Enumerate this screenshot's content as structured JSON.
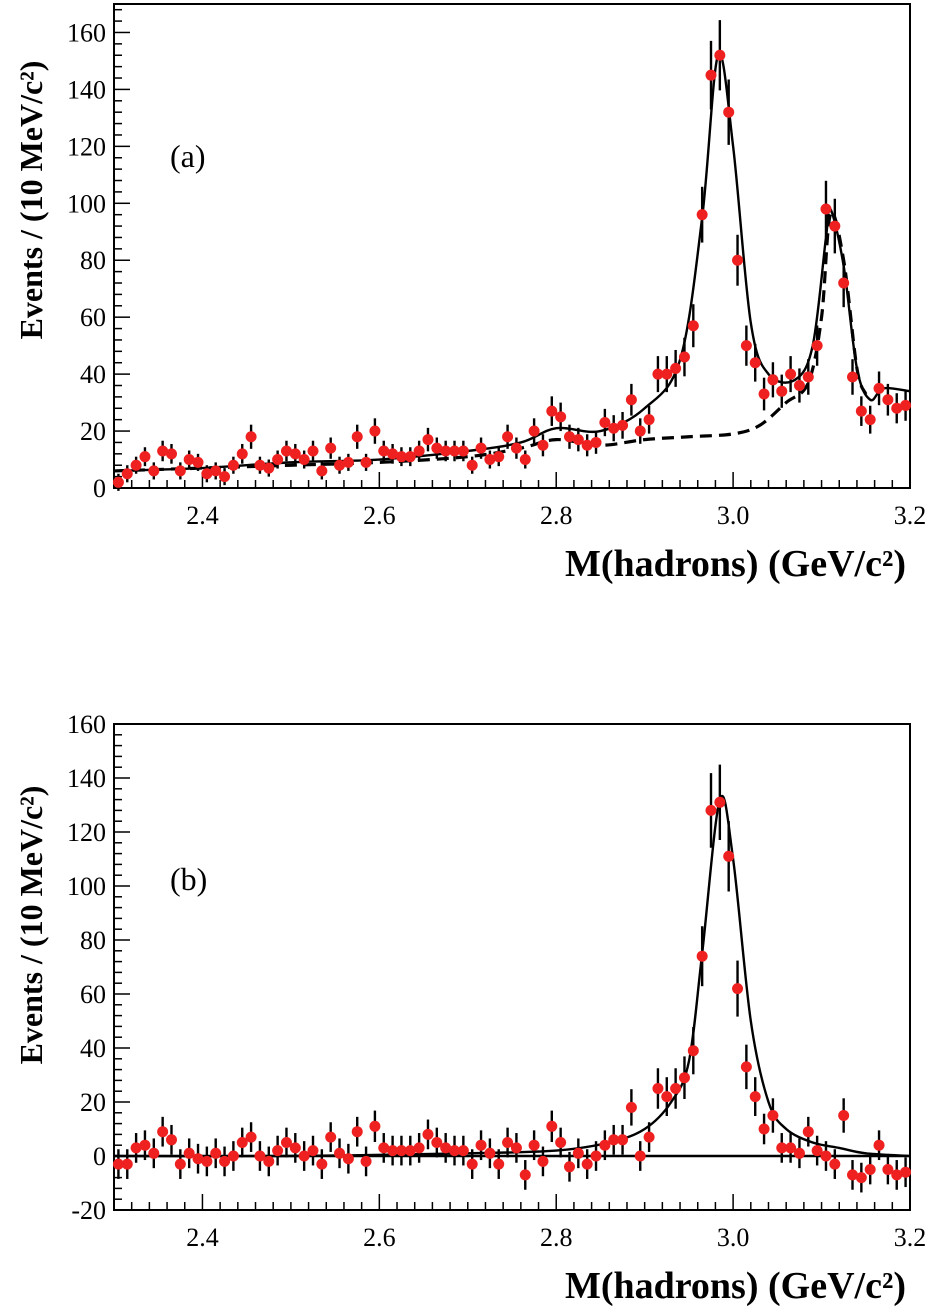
{
  "colors": {
    "marker": "#ee2020",
    "line": "#000000",
    "errorbar": "#000000"
  },
  "chart_data": [
    {
      "type": "scatter",
      "panel_label": "(a)",
      "xlabel": "M(hadrons)  (GeV/c²)",
      "ylabel": "Events / (10 MeV/c²)",
      "xlim": [
        2.3,
        3.2
      ],
      "ylim": [
        0,
        170
      ],
      "xticks": [
        "2.4",
        "2.6",
        "2.8",
        "3.0",
        "3.2"
      ],
      "xtick_values": [
        2.4,
        2.6,
        2.8,
        3.0,
        3.2
      ],
      "yticks": [
        "0",
        "20",
        "40",
        "60",
        "80",
        "100",
        "120",
        "140",
        "160"
      ],
      "ytick_values": [
        0,
        20,
        40,
        60,
        80,
        100,
        120,
        140,
        160
      ],
      "data_points": [
        [
          2.305,
          2
        ],
        [
          2.315,
          5
        ],
        [
          2.325,
          8
        ],
        [
          2.335,
          11
        ],
        [
          2.345,
          6
        ],
        [
          2.355,
          13
        ],
        [
          2.365,
          12
        ],
        [
          2.375,
          6
        ],
        [
          2.385,
          10
        ],
        [
          2.395,
          9
        ],
        [
          2.405,
          5
        ],
        [
          2.415,
          6
        ],
        [
          2.425,
          4
        ],
        [
          2.435,
          8
        ],
        [
          2.445,
          12
        ],
        [
          2.455,
          18
        ],
        [
          2.465,
          8
        ],
        [
          2.475,
          7
        ],
        [
          2.485,
          10
        ],
        [
          2.495,
          13
        ],
        [
          2.505,
          12
        ],
        [
          2.515,
          10
        ],
        [
          2.525,
          13
        ],
        [
          2.535,
          6
        ],
        [
          2.545,
          14
        ],
        [
          2.555,
          8
        ],
        [
          2.565,
          9
        ],
        [
          2.575,
          18
        ],
        [
          2.585,
          9
        ],
        [
          2.595,
          20
        ],
        [
          2.605,
          13
        ],
        [
          2.615,
          12
        ],
        [
          2.625,
          11
        ],
        [
          2.635,
          11
        ],
        [
          2.645,
          13
        ],
        [
          2.655,
          17
        ],
        [
          2.665,
          14
        ],
        [
          2.675,
          13
        ],
        [
          2.685,
          13
        ],
        [
          2.695,
          13
        ],
        [
          2.705,
          8
        ],
        [
          2.715,
          14
        ],
        [
          2.725,
          10
        ],
        [
          2.735,
          11
        ],
        [
          2.745,
          18
        ],
        [
          2.755,
          14
        ],
        [
          2.765,
          10
        ],
        [
          2.775,
          20
        ],
        [
          2.785,
          15
        ],
        [
          2.795,
          27
        ],
        [
          2.805,
          25
        ],
        [
          2.815,
          18
        ],
        [
          2.825,
          17
        ],
        [
          2.835,
          15
        ],
        [
          2.845,
          16
        ],
        [
          2.855,
          23
        ],
        [
          2.865,
          21
        ],
        [
          2.875,
          22
        ],
        [
          2.885,
          31
        ],
        [
          2.895,
          20
        ],
        [
          2.905,
          24
        ],
        [
          2.915,
          40
        ],
        [
          2.925,
          40
        ],
        [
          2.935,
          42
        ],
        [
          2.945,
          46
        ],
        [
          2.955,
          57
        ],
        [
          2.965,
          96
        ],
        [
          2.975,
          145
        ],
        [
          2.985,
          152
        ],
        [
          2.995,
          132
        ],
        [
          3.005,
          80
        ],
        [
          3.015,
          50
        ],
        [
          3.025,
          44
        ],
        [
          3.035,
          33
        ],
        [
          3.045,
          38
        ],
        [
          3.055,
          34
        ],
        [
          3.065,
          40
        ],
        [
          3.075,
          36
        ],
        [
          3.085,
          39
        ],
        [
          3.095,
          50
        ],
        [
          3.105,
          98
        ],
        [
          3.115,
          92
        ],
        [
          3.125,
          72
        ],
        [
          3.135,
          39
        ],
        [
          3.145,
          27
        ],
        [
          3.155,
          24
        ],
        [
          3.165,
          35
        ],
        [
          3.175,
          31
        ],
        [
          3.185,
          28
        ],
        [
          3.195,
          29
        ]
      ],
      "curves": [
        {
          "style": "solid",
          "points": [
            [
              2.3,
              6
            ],
            [
              2.4,
              7
            ],
            [
              2.5,
              9
            ],
            [
              2.6,
              10
            ],
            [
              2.7,
              13
            ],
            [
              2.76,
              16
            ],
            [
              2.8,
              21
            ],
            [
              2.85,
              20
            ],
            [
              2.9,
              28
            ],
            [
              2.94,
              45
            ],
            [
              2.965,
              95
            ],
            [
              2.983,
              152
            ],
            [
              3.0,
              120
            ],
            [
              3.02,
              58
            ],
            [
              3.04,
              40
            ],
            [
              3.07,
              38
            ],
            [
              3.09,
              50
            ],
            [
              3.105,
              88
            ],
            [
              3.11,
              98
            ],
            [
              3.125,
              78
            ],
            [
              3.14,
              42
            ],
            [
              3.155,
              31
            ],
            [
              3.17,
              35
            ],
            [
              3.2,
              34
            ]
          ]
        },
        {
          "style": "dashed",
          "points": [
            [
              2.3,
              6
            ],
            [
              2.4,
              7
            ],
            [
              2.5,
              8
            ],
            [
              2.6,
              9
            ],
            [
              2.7,
              11
            ],
            [
              2.76,
              14
            ],
            [
              2.8,
              17
            ],
            [
              2.85,
              15
            ],
            [
              2.9,
              17
            ],
            [
              2.95,
              18
            ],
            [
              3.0,
              19
            ],
            [
              3.03,
              22
            ],
            [
              3.06,
              30
            ],
            [
              3.085,
              37
            ],
            [
              3.1,
              60
            ],
            [
              3.11,
              96
            ],
            [
              3.125,
              80
            ],
            [
              3.14,
              42
            ],
            [
              3.15,
              33
            ]
          ]
        }
      ]
    },
    {
      "type": "scatter",
      "panel_label": "(b)",
      "xlabel": "M(hadrons)  (GeV/c²)",
      "ylabel": "Events / (10 MeV/c²)",
      "xlim": [
        2.3,
        3.2
      ],
      "ylim": [
        -20,
        160
      ],
      "xticks": [
        "2.4",
        "2.6",
        "2.8",
        "3.0",
        "3.2"
      ],
      "xtick_values": [
        2.4,
        2.6,
        2.8,
        3.0,
        3.2
      ],
      "yticks": [
        "-20",
        "0",
        "20",
        "40",
        "60",
        "80",
        "100",
        "120",
        "140",
        "160"
      ],
      "ytick_values": [
        -20,
        0,
        20,
        40,
        60,
        80,
        100,
        120,
        140,
        160
      ],
      "data_points": [
        [
          2.305,
          -3
        ],
        [
          2.315,
          -3
        ],
        [
          2.325,
          3
        ],
        [
          2.335,
          4
        ],
        [
          2.345,
          1
        ],
        [
          2.355,
          9
        ],
        [
          2.365,
          6
        ],
        [
          2.375,
          -3
        ],
        [
          2.385,
          1
        ],
        [
          2.395,
          -1
        ],
        [
          2.405,
          -2
        ],
        [
          2.415,
          1
        ],
        [
          2.425,
          -2
        ],
        [
          2.435,
          0
        ],
        [
          2.445,
          5
        ],
        [
          2.455,
          7
        ],
        [
          2.465,
          0
        ],
        [
          2.475,
          -2
        ],
        [
          2.485,
          2
        ],
        [
          2.495,
          5
        ],
        [
          2.505,
          3
        ],
        [
          2.515,
          0
        ],
        [
          2.525,
          2
        ],
        [
          2.535,
          -3
        ],
        [
          2.545,
          7
        ],
        [
          2.555,
          1
        ],
        [
          2.565,
          -1
        ],
        [
          2.575,
          9
        ],
        [
          2.585,
          -2
        ],
        [
          2.595,
          11
        ],
        [
          2.605,
          3
        ],
        [
          2.615,
          2
        ],
        [
          2.625,
          2
        ],
        [
          2.635,
          2
        ],
        [
          2.645,
          3
        ],
        [
          2.655,
          8
        ],
        [
          2.665,
          5
        ],
        [
          2.675,
          3
        ],
        [
          2.685,
          2
        ],
        [
          2.695,
          2
        ],
        [
          2.705,
          -3
        ],
        [
          2.715,
          4
        ],
        [
          2.725,
          1
        ],
        [
          2.735,
          -3
        ],
        [
          2.745,
          5
        ],
        [
          2.755,
          3
        ],
        [
          2.765,
          -7
        ],
        [
          2.775,
          4
        ],
        [
          2.785,
          -2
        ],
        [
          2.795,
          11
        ],
        [
          2.805,
          5
        ],
        [
          2.815,
          -4
        ],
        [
          2.825,
          1
        ],
        [
          2.835,
          -3
        ],
        [
          2.845,
          0
        ],
        [
          2.855,
          4
        ],
        [
          2.865,
          6
        ],
        [
          2.875,
          6
        ],
        [
          2.885,
          18
        ],
        [
          2.895,
          0
        ],
        [
          2.905,
          7
        ],
        [
          2.915,
          25
        ],
        [
          2.925,
          22
        ],
        [
          2.935,
          25
        ],
        [
          2.945,
          29
        ],
        [
          2.955,
          39
        ],
        [
          2.965,
          74
        ],
        [
          2.975,
          128
        ],
        [
          2.985,
          131
        ],
        [
          2.995,
          111
        ],
        [
          3.005,
          62
        ],
        [
          3.015,
          33
        ],
        [
          3.025,
          22
        ],
        [
          3.035,
          10
        ],
        [
          3.045,
          15
        ],
        [
          3.055,
          3
        ],
        [
          3.065,
          3
        ],
        [
          3.075,
          1
        ],
        [
          3.085,
          9
        ],
        [
          3.095,
          2
        ],
        [
          3.105,
          0
        ],
        [
          3.115,
          -3
        ],
        [
          3.125,
          15
        ],
        [
          3.135,
          -7
        ],
        [
          3.145,
          -8
        ],
        [
          3.155,
          -5
        ],
        [
          3.165,
          4
        ],
        [
          3.175,
          -5
        ],
        [
          3.185,
          -7
        ],
        [
          3.195,
          -6
        ]
      ],
      "curves": [
        {
          "style": "solid",
          "points": [
            [
              2.3,
              0
            ],
            [
              2.5,
              0
            ],
            [
              2.7,
              1
            ],
            [
              2.8,
              2
            ],
            [
              2.86,
              5
            ],
            [
              2.9,
              10
            ],
            [
              2.93,
              20
            ],
            [
              2.95,
              35
            ],
            [
              2.965,
              75
            ],
            [
              2.985,
              132
            ],
            [
              3.0,
              110
            ],
            [
              3.02,
              50
            ],
            [
              3.04,
              20
            ],
            [
              3.06,
              10
            ],
            [
              3.09,
              5
            ],
            [
              3.12,
              3
            ],
            [
              3.15,
              1
            ],
            [
              3.2,
              0
            ]
          ]
        },
        {
          "style": "solid",
          "points": [
            [
              2.3,
              0
            ],
            [
              3.2,
              0
            ]
          ]
        }
      ]
    }
  ]
}
